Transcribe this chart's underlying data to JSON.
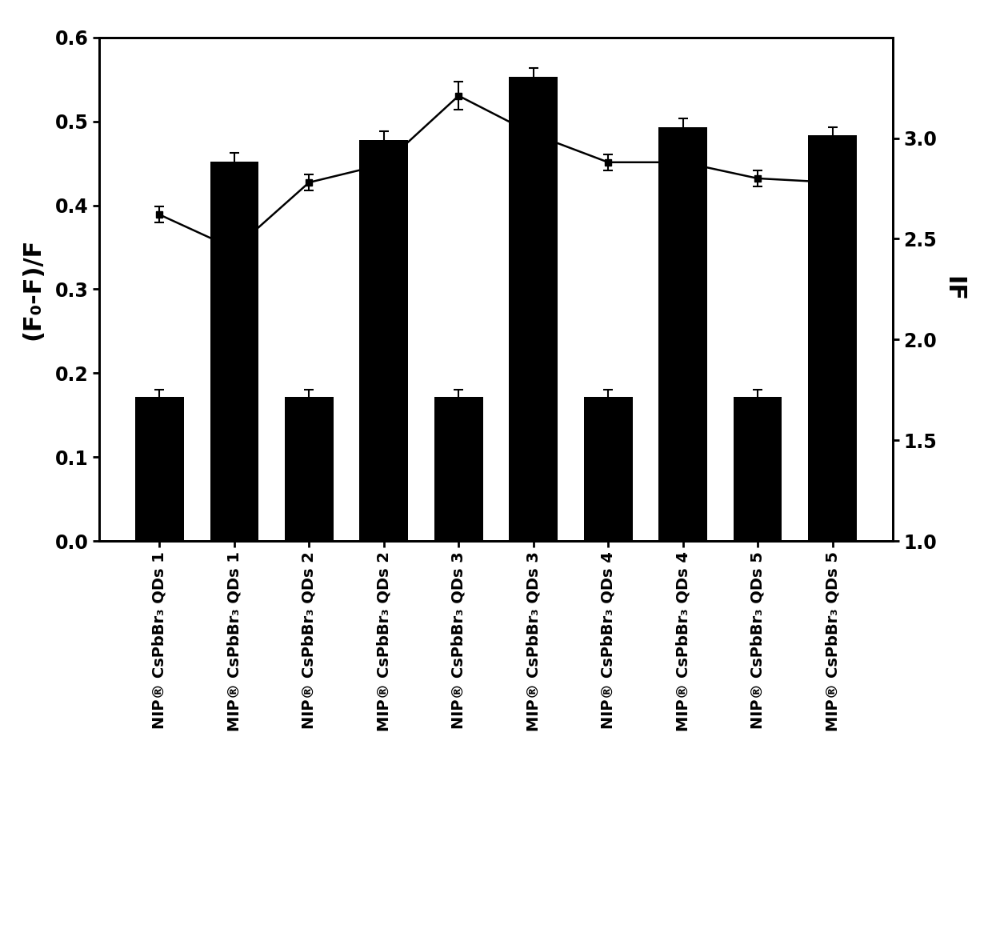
{
  "categories": [
    "NIP® CsPbBr₃ QDs 1",
    "MIP® CsPbBr₃ QDs 1",
    "NIP® CsPbBr₃ QDs 2",
    "MIP® CsPbBr₃ QDs 2",
    "NIP® CsPbBr₃ QDs 3",
    "MIP® CsPbBr₃ QDs 3",
    "NIP® CsPbBr₃ QDs 4",
    "MIP® CsPbBr₃ QDs 4",
    "NIP® CsPbBr₃ QDs 5",
    "MIP® CsPbBr₃ QDs 5"
  ],
  "bar_values": [
    0.172,
    0.452,
    0.172,
    0.478,
    0.172,
    0.553,
    0.172,
    0.493,
    0.172,
    0.483
  ],
  "bar_errors": [
    0.008,
    0.01,
    0.008,
    0.01,
    0.008,
    0.01,
    0.008,
    0.01,
    0.008,
    0.01
  ],
  "line_values": [
    2.62,
    2.45,
    2.78,
    2.87,
    3.21,
    3.02,
    2.88,
    2.88,
    2.8,
    2.78
  ],
  "line_errors": [
    0.04,
    0.04,
    0.04,
    0.04,
    0.07,
    0.04,
    0.04,
    0.04,
    0.04,
    0.04
  ],
  "bar_color": "#000000",
  "line_color": "#000000",
  "ylabel_left": "(F₀-F)/F",
  "ylabel_right": "IF",
  "ylim_left": [
    0.0,
    0.6
  ],
  "ylim_right": [
    1.0,
    3.5
  ],
  "yticks_left": [
    0.0,
    0.1,
    0.2,
    0.3,
    0.4,
    0.5,
    0.6
  ],
  "yticks_right": [
    1.0,
    1.5,
    2.0,
    2.5,
    3.0
  ],
  "background_color": "#ffffff",
  "bar_width": 0.65,
  "fontsize_ticks": 17,
  "fontsize_labels": 22,
  "fontsize_xticks": 14
}
